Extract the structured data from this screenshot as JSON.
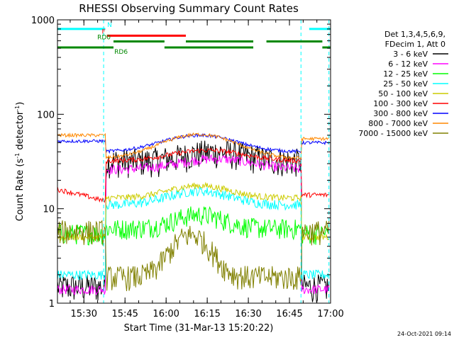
{
  "chart_data": {
    "type": "line",
    "title": "RHESSI Observing Summary Count Rates",
    "xlabel": "Start Time (31-Mar-13 15:20:22)",
    "ylabel_main": "Count Rate (s",
    "ylabel_sup1": "-1",
    "ylabel_mid": " detector",
    "ylabel_sup2": "-1",
    "ylabel_end": ")",
    "y_scale": "log",
    "ylim": [
      1,
      1000
    ],
    "xlim": [
      15.3393,
      17.0
    ],
    "x_ticks": [
      {
        "v": 15.5,
        "label": "15:30"
      },
      {
        "v": 15.75,
        "label": "15:45"
      },
      {
        "v": 16.0,
        "label": "16:00"
      },
      {
        "v": 16.25,
        "label": "16:15"
      },
      {
        "v": 16.5,
        "label": "16:30"
      },
      {
        "v": 16.75,
        "label": "16:45"
      },
      {
        "v": 17.0,
        "label": "17:00"
      }
    ],
    "y_ticks": [
      {
        "v": 1,
        "label": "1"
      },
      {
        "v": 10,
        "label": "10"
      },
      {
        "v": 100,
        "label": "100"
      },
      {
        "v": 1000,
        "label": "1000"
      }
    ],
    "legend_header": [
      "Det 1,3,4,5,6,9,",
      "FDecim 1, Att 0"
    ],
    "legend_placement": "right",
    "footer_date": "24-Oct-2021 09:14",
    "series": [
      {
        "name": "3 - 6 keV",
        "color": "#000000"
      },
      {
        "name": "6 - 12 keV",
        "color": "#ff00ff"
      },
      {
        "name": "12 - 25 keV",
        "color": "#00ff00"
      },
      {
        "name": "25 - 50 keV",
        "color": "#00ffff"
      },
      {
        "name": "50 - 100 keV",
        "color": "#cccc00"
      },
      {
        "name": "100 - 300 keV",
        "color": "#ff0000"
      },
      {
        "name": "300 - 800 keV",
        "color": "#0000ff"
      },
      {
        "name": "800 - 7000 keV",
        "color": "#ff8800"
      },
      {
        "name": "7000 - 15000 keV",
        "color": "#808000"
      }
    ],
    "flags": [
      {
        "label": "N",
        "color": "#00ffff",
        "level": 800,
        "segments": [
          [
            15.34,
            15.63
          ],
          [
            16.87,
            17.0
          ]
        ]
      },
      {
        "label": "F",
        "color": "#ff0000",
        "level": 680,
        "segments": [
          [
            15.64,
            16.12
          ]
        ]
      },
      {
        "label": "RD0",
        "color": "#008800",
        "level": 590,
        "segments": [
          [
            15.68,
            15.99
          ],
          [
            16.12,
            16.53
          ],
          [
            16.61,
            16.95
          ]
        ]
      },
      {
        "label": "RD6",
        "color": "#008800",
        "level": 510,
        "segments": [
          [
            15.34,
            15.68
          ],
          [
            15.99,
            16.53
          ],
          [
            16.95,
            17.0
          ]
        ]
      }
    ],
    "night_boundaries": [
      15.62,
      16.82,
      16.99
    ]
  }
}
